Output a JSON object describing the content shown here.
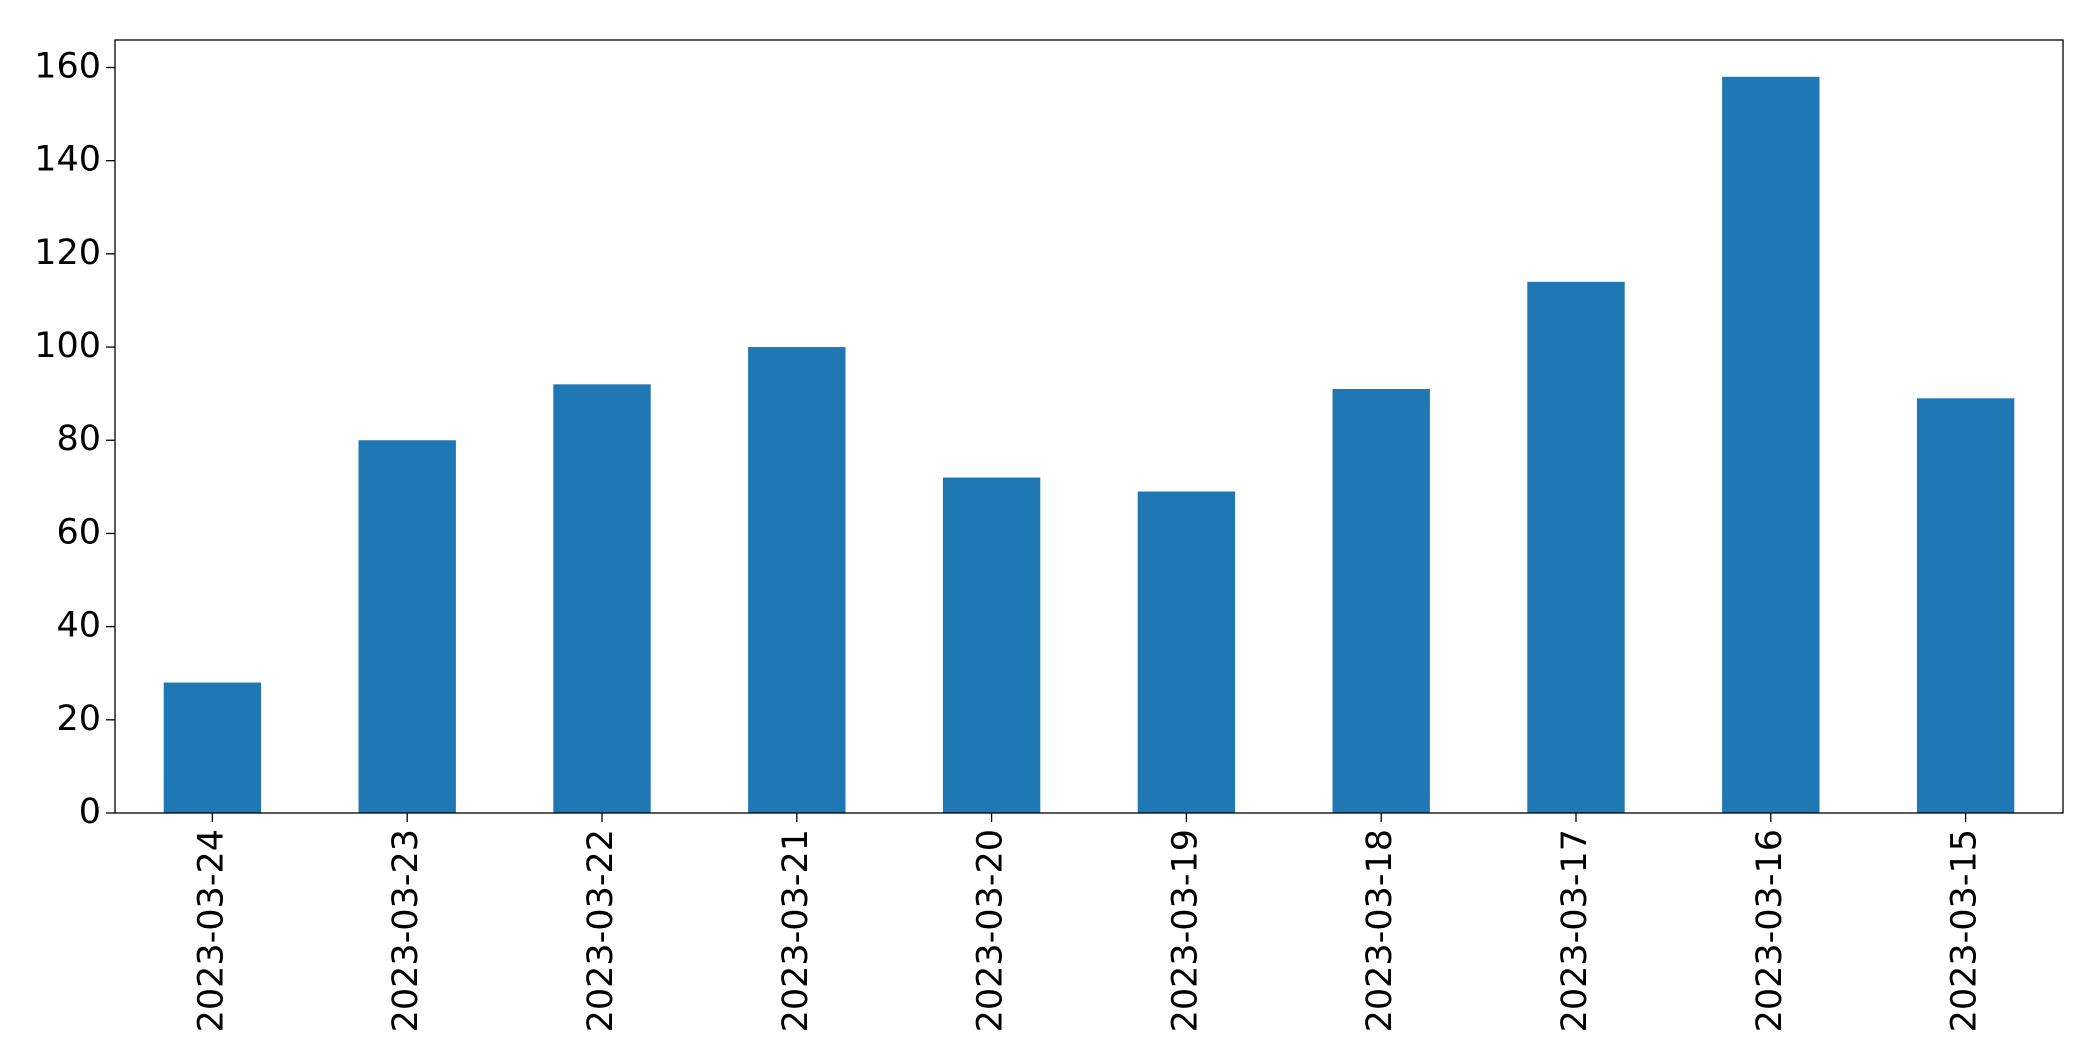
{
  "chart_data": {
    "type": "bar",
    "categories": [
      "2023-03-24",
      "2023-03-23",
      "2023-03-22",
      "2023-03-21",
      "2023-03-20",
      "2023-03-19",
      "2023-03-18",
      "2023-03-17",
      "2023-03-16",
      "2023-03-15"
    ],
    "values": [
      28,
      80,
      92,
      100,
      72,
      69,
      91,
      114,
      158,
      89
    ],
    "color": "#1f77b4",
    "ylim": [
      0,
      165.9
    ],
    "yticks": [
      0,
      20,
      40,
      60,
      80,
      100,
      120,
      140,
      160
    ],
    "grid": false
  }
}
